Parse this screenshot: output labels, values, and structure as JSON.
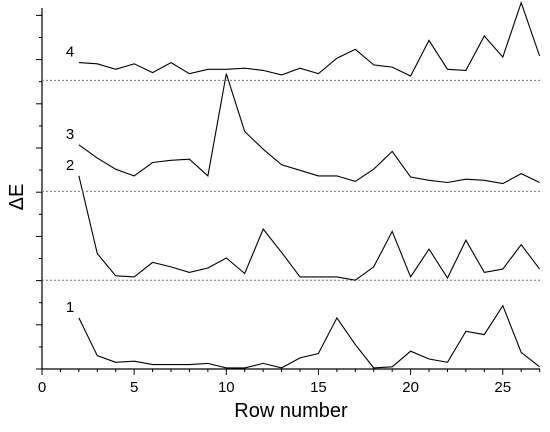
{
  "chart_data": {
    "type": "line",
    "xlabel": "Row number",
    "ylabel": "ΔE",
    "xlim": [
      0,
      27
    ],
    "xticks": [
      0,
      5,
      10,
      15,
      20,
      25
    ],
    "grid": false,
    "x": [
      2,
      3,
      4,
      5,
      6,
      7,
      8,
      9,
      10,
      11,
      12,
      13,
      14,
      15,
      16,
      17,
      18,
      19,
      20,
      21,
      22,
      23,
      24,
      25,
      26,
      27
    ],
    "series": [
      {
        "name": "1",
        "baseline": 0,
        "values": [
          2.3,
          0.6,
          0.3,
          0.35,
          0.2,
          0.2,
          0.2,
          0.25,
          0.05,
          0.05,
          0.25,
          0.05,
          0.5,
          0.7,
          2.3,
          1.1,
          0.05,
          0.1,
          0.8,
          0.45,
          0.3,
          1.7,
          1.55,
          2.85,
          0.75,
          0.1
        ]
      },
      {
        "name": "2",
        "baseline": 4,
        "values": [
          4.7,
          1.2,
          0.2,
          0.15,
          0.8,
          0.6,
          0.35,
          0.55,
          1.0,
          0.3,
          2.3,
          1.25,
          0.15,
          0.15,
          0.15,
          0.0,
          0.6,
          2.2,
          0.15,
          1.4,
          0.1,
          1.8,
          0.35,
          0.5,
          1.6,
          0.5
        ]
      },
      {
        "name": "3",
        "baseline": 8,
        "values": [
          2.1,
          1.5,
          1.0,
          0.7,
          1.3,
          1.4,
          1.45,
          0.7,
          5.3,
          2.7,
          1.9,
          1.2,
          0.95,
          0.7,
          0.7,
          0.45,
          1.0,
          1.8,
          0.65,
          0.5,
          0.4,
          0.55,
          0.5,
          0.35,
          0.8,
          0.4
        ]
      },
      {
        "name": "4",
        "baseline": 13,
        "values": [
          0.8,
          0.75,
          0.5,
          0.75,
          0.35,
          0.8,
          0.3,
          0.5,
          0.5,
          0.55,
          0.45,
          0.25,
          0.55,
          0.3,
          1.0,
          1.4,
          0.7,
          0.6,
          0.2,
          1.8,
          0.5,
          0.45,
          2.0,
          1.05,
          3.5,
          1.1
        ]
      }
    ]
  }
}
